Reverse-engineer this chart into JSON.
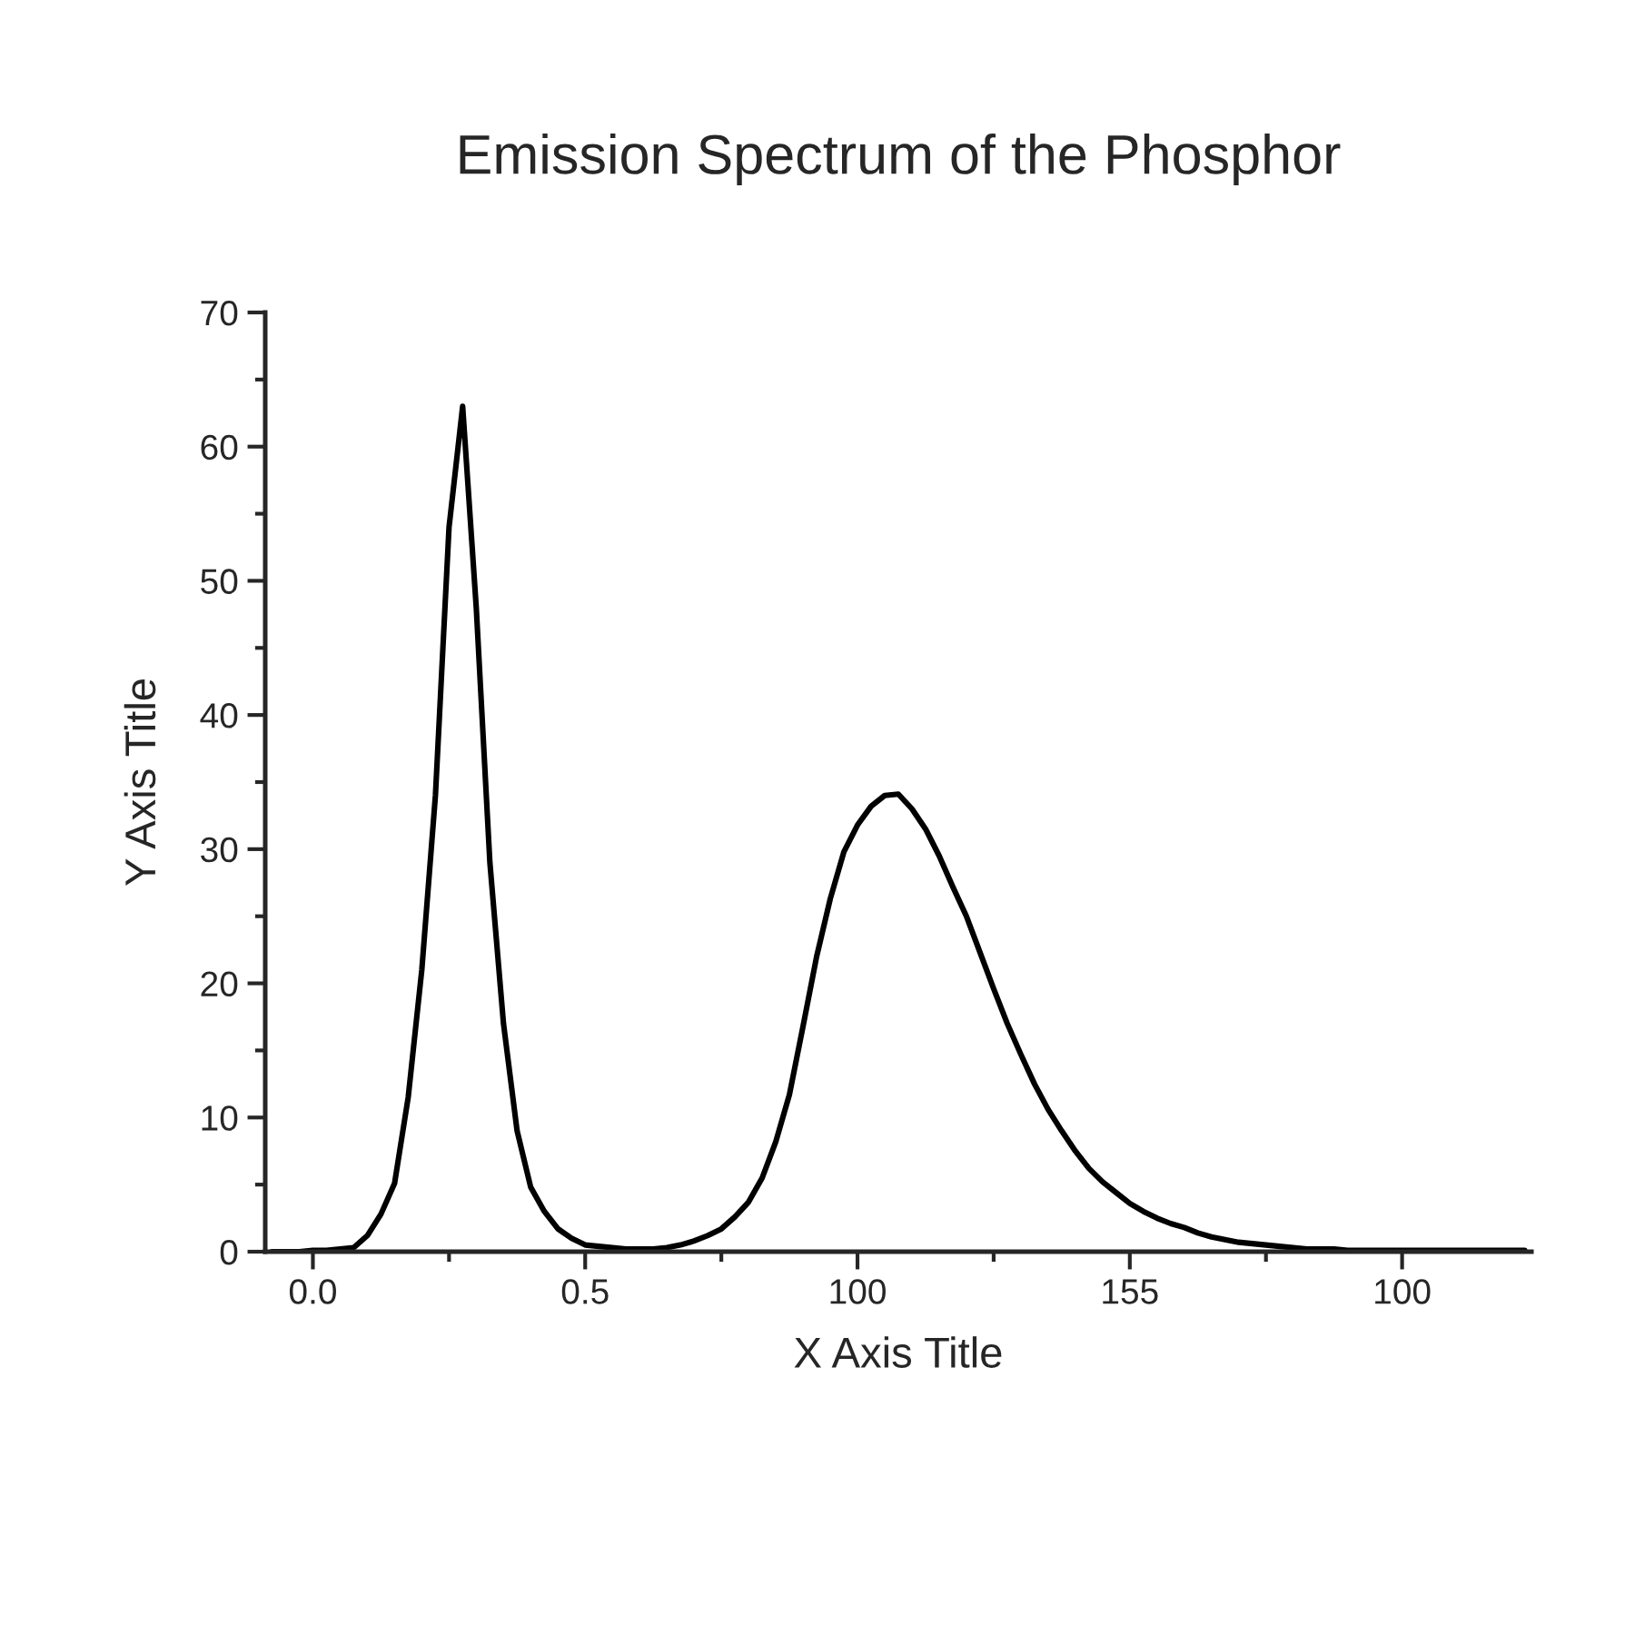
{
  "chart_data": {
    "type": "line",
    "title": "Emission Spectrum of the Phosphor",
    "xlabel": "X Axis Title",
    "ylabel": "Y Axis Title",
    "categories": [
      null,
      null,
      null,
      "0.0",
      null,
      null,
      null,
      null,
      null,
      null,
      null,
      null,
      null,
      null,
      null,
      null,
      null,
      null,
      null,
      null,
      null,
      null,
      null,
      "0.5",
      null,
      null,
      null,
      null,
      null,
      null,
      null,
      null,
      null,
      null,
      null,
      null,
      null,
      null,
      null,
      null,
      null,
      null,
      null,
      "100",
      null,
      null,
      null,
      null,
      null,
      null,
      null,
      null,
      null,
      null,
      null,
      null,
      null,
      null,
      null,
      null,
      null,
      null,
      null,
      "155",
      null,
      null,
      null,
      null,
      null,
      null,
      null,
      null,
      null,
      null,
      null,
      null,
      null,
      null,
      null,
      null,
      null,
      null,
      null,
      "100",
      null,
      null,
      null,
      null,
      null,
      null,
      null,
      null,
      null
    ],
    "series": [
      {
        "color": "#000000",
        "values": [
          0,
          0,
          0,
          0.1,
          0.1,
          0.2,
          0.3,
          1.2,
          2.8,
          5.1,
          11.5,
          21,
          34,
          54,
          63,
          48,
          29,
          17,
          9,
          4.8,
          3,
          1.7,
          1,
          0.5,
          0.4,
          0.3,
          0.2,
          0.2,
          0.2,
          0.3,
          0.5,
          0.8,
          1.2,
          1.7,
          2.6,
          3.7,
          5.5,
          8.2,
          11.7,
          16.8,
          22,
          26.3,
          29.8,
          31.8,
          33.2,
          34,
          34.1,
          33,
          31.5,
          29.5,
          27.2,
          25,
          22.3,
          19.6,
          17,
          14.7,
          12.5,
          10.6,
          9,
          7.5,
          6.2,
          5.2,
          4.4,
          3.6,
          3,
          2.5,
          2.1,
          1.8,
          1.4,
          1.1,
          0.9,
          0.7,
          0.6,
          0.5,
          0.4,
          0.3,
          0.2,
          0.2,
          0.2,
          0.1,
          0.1,
          0.1,
          0.1,
          0.1,
          0.1,
          0.1,
          0.1,
          0.1,
          0.1,
          0.1,
          0.1,
          0.1,
          0.1
        ]
      }
    ],
    "ylim": [
      0,
      70
    ],
    "yticks": [
      0,
      10,
      20,
      30,
      40,
      50,
      60,
      70
    ],
    "grid": false,
    "marker": "none",
    "line_style": "solid"
  }
}
